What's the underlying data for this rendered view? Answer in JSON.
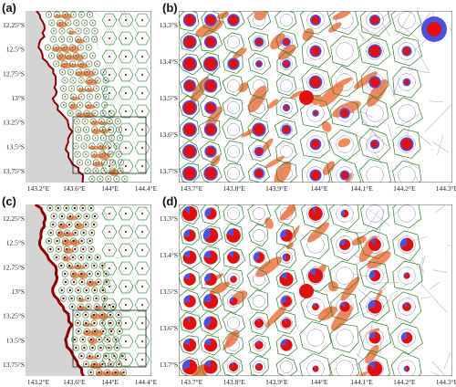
{
  "panels": [
    {
      "id": "a",
      "label": "(a)",
      "lat_ticks": [
        "12.25°S",
        "12.5°S",
        "12.75°S",
        "13°S",
        "13.25°S",
        "13.5°S",
        "13.75°S"
      ],
      "lon_ticks": [
        "143.2°E",
        "143.6°E",
        "144°E",
        "144.4°E"
      ]
    },
    {
      "id": "b",
      "label": "(b)",
      "lat_ticks": [
        "13.3°S",
        "13.4°S",
        "13.5°S",
        "13.6°S",
        "13.7°S"
      ],
      "lon_ticks": [
        "143.7°E",
        "143.8°E",
        "143.9°E",
        "144°E",
        "144.1°E",
        "144.2°E",
        "144.3°E"
      ]
    },
    {
      "id": "c",
      "label": "(c)",
      "lat_ticks": [
        "12.25°S",
        "12.5°S",
        "12.75°S",
        "13°S",
        "13.25°S",
        "13.5°S",
        "13.75°S"
      ],
      "lon_ticks": [
        "143.2°E",
        "143.6°E",
        "144°E",
        "144.4°E"
      ]
    },
    {
      "id": "d",
      "label": "(d)",
      "lat_ticks": [
        "13.3°S",
        "13.4°S",
        "13.5°S",
        "13.6°S",
        "13.7°S"
      ],
      "lon_ticks": [
        "143.7°E",
        "143.8°E",
        "143.9°E",
        "144°E",
        "144.1°E",
        "144.2°E",
        "144.3°E"
      ]
    }
  ],
  "colors": {
    "land": "#d4d4d4",
    "reef": "#f07c4a",
    "mesh_green": "#2e7d32",
    "mesh_grey": "#b5b5b5",
    "pie_red": "#e01010",
    "pie_blue": "#4b52e0",
    "coast_red": "#8b0000"
  }
}
